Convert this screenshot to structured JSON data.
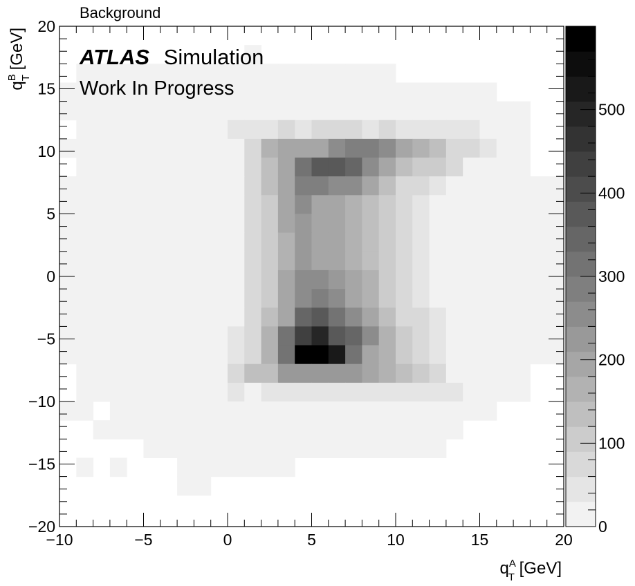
{
  "chart_data": {
    "type": "heatmap",
    "title": "Background",
    "experiment": "ATLAS",
    "label_line1": "Simulation",
    "label_line2": "Work In Progress",
    "xlabel": {
      "base": "q",
      "sup": "A",
      "sub": "T",
      "unit": " [GeV]"
    },
    "ylabel": {
      "base": "q",
      "sup": "B",
      "sub": "T",
      "unit": " [GeV]"
    },
    "xlim": [
      -10,
      20
    ],
    "ylim": [
      -20,
      20
    ],
    "x_bin_width": 1,
    "y_bin_width": 1.5,
    "x_ticks": [
      -10,
      -5,
      0,
      5,
      10,
      15,
      20
    ],
    "y_ticks": [
      -20,
      -15,
      -10,
      -5,
      0,
      5,
      10,
      15,
      20
    ],
    "x_tick_labels": [
      "−10",
      "−5",
      "0",
      "5",
      "10",
      "15",
      "20"
    ],
    "y_tick_labels": [
      "−20",
      "−15",
      "−10",
      "−5",
      "0",
      "5",
      "10",
      "15",
      "20"
    ],
    "zlim": [
      0,
      600
    ],
    "z_ticks": [
      0,
      100,
      200,
      300,
      400,
      500
    ],
    "z_tick_labels": [
      "0",
      "100",
      "200",
      "300",
      "400",
      "500"
    ],
    "colormap": "greys",
    "grid": false,
    "legend": "colorbar-right",
    "rows_top_to_bottom_values_in_counts": [
      [
        0,
        0,
        0,
        0,
        0,
        0,
        0,
        0,
        0,
        0,
        0,
        0,
        0,
        0,
        0,
        0,
        0,
        0,
        0,
        0,
        0,
        0,
        0,
        0,
        0,
        0,
        0,
        0,
        0,
        0
      ],
      [
        0,
        0,
        0,
        0,
        0,
        0,
        0,
        0,
        0,
        0,
        0,
        10,
        0,
        0,
        0,
        0,
        0,
        0,
        0,
        0,
        0,
        0,
        0,
        0,
        0,
        0,
        0,
        0,
        0,
        0
      ],
      [
        0,
        10,
        10,
        10,
        10,
        10,
        10,
        10,
        10,
        10,
        10,
        10,
        10,
        10,
        10,
        10,
        10,
        10,
        10,
        10,
        0,
        0,
        0,
        0,
        0,
        0,
        0,
        0,
        0,
        0
      ],
      [
        10,
        10,
        10,
        10,
        10,
        10,
        10,
        10,
        10,
        10,
        10,
        10,
        10,
        10,
        10,
        10,
        10,
        10,
        10,
        10,
        10,
        10,
        10,
        10,
        10,
        10,
        0,
        0,
        0,
        0
      ],
      [
        10,
        10,
        10,
        10,
        10,
        10,
        10,
        10,
        10,
        10,
        10,
        10,
        10,
        10,
        10,
        10,
        10,
        10,
        10,
        10,
        10,
        10,
        10,
        10,
        10,
        10,
        10,
        10,
        0,
        0
      ],
      [
        0,
        10,
        10,
        10,
        10,
        10,
        10,
        10,
        20,
        20,
        35,
        35,
        35,
        60,
        35,
        60,
        60,
        60,
        35,
        60,
        35,
        35,
        35,
        35,
        35,
        20,
        10,
        10,
        0,
        0
      ],
      [
        10,
        10,
        10,
        10,
        10,
        10,
        10,
        10,
        10,
        10,
        10,
        60,
        150,
        180,
        180,
        200,
        250,
        290,
        280,
        240,
        200,
        160,
        120,
        60,
        60,
        35,
        10,
        10,
        0,
        0
      ],
      [
        0,
        10,
        10,
        10,
        10,
        10,
        10,
        10,
        10,
        10,
        20,
        60,
        120,
        180,
        320,
        380,
        380,
        340,
        250,
        180,
        120,
        100,
        100,
        60,
        10,
        10,
        10,
        10,
        0,
        0
      ],
      [
        10,
        10,
        10,
        10,
        10,
        10,
        10,
        10,
        10,
        10,
        20,
        60,
        120,
        180,
        290,
        280,
        260,
        240,
        200,
        120,
        60,
        60,
        35,
        10,
        10,
        10,
        10,
        10,
        10,
        10
      ],
      [
        10,
        10,
        10,
        10,
        10,
        10,
        10,
        10,
        10,
        10,
        20,
        60,
        100,
        180,
        240,
        200,
        200,
        160,
        140,
        100,
        60,
        35,
        20,
        20,
        10,
        10,
        10,
        10,
        10,
        10
      ],
      [
        10,
        10,
        10,
        10,
        10,
        10,
        10,
        10,
        10,
        10,
        20,
        60,
        100,
        180,
        220,
        200,
        180,
        160,
        140,
        100,
        60,
        35,
        20,
        10,
        10,
        10,
        10,
        10,
        10,
        10
      ],
      [
        10,
        10,
        10,
        10,
        10,
        10,
        10,
        10,
        10,
        10,
        20,
        60,
        100,
        160,
        220,
        200,
        180,
        160,
        140,
        100,
        60,
        35,
        20,
        10,
        10,
        10,
        10,
        10,
        10,
        10
      ],
      [
        10,
        10,
        10,
        10,
        10,
        10,
        10,
        10,
        10,
        10,
        20,
        60,
        100,
        160,
        220,
        200,
        180,
        160,
        140,
        100,
        60,
        35,
        20,
        10,
        10,
        10,
        10,
        10,
        10,
        10
      ],
      [
        10,
        10,
        10,
        10,
        10,
        10,
        10,
        10,
        10,
        10,
        20,
        60,
        100,
        180,
        250,
        240,
        220,
        180,
        160,
        100,
        60,
        35,
        20,
        10,
        10,
        10,
        10,
        10,
        10,
        10
      ],
      [
        10,
        10,
        10,
        10,
        10,
        10,
        10,
        10,
        10,
        10,
        20,
        60,
        100,
        180,
        260,
        280,
        240,
        200,
        160,
        100,
        60,
        35,
        20,
        10,
        10,
        10,
        10,
        10,
        10,
        10
      ],
      [
        10,
        10,
        10,
        10,
        10,
        10,
        10,
        10,
        10,
        10,
        20,
        60,
        120,
        200,
        330,
        380,
        300,
        240,
        200,
        140,
        80,
        60,
        35,
        10,
        10,
        10,
        10,
        10,
        10,
        10
      ],
      [
        10,
        10,
        10,
        10,
        10,
        10,
        10,
        10,
        10,
        10,
        35,
        60,
        160,
        300,
        420,
        500,
        380,
        340,
        240,
        160,
        100,
        60,
        35,
        10,
        10,
        10,
        10,
        10,
        10,
        10
      ],
      [
        10,
        10,
        10,
        10,
        10,
        10,
        10,
        10,
        20,
        20,
        35,
        80,
        160,
        300,
        570,
        590,
        520,
        300,
        200,
        160,
        100,
        60,
        35,
        20,
        20,
        10,
        10,
        10,
        10,
        10
      ],
      [
        0,
        10,
        10,
        10,
        10,
        10,
        10,
        10,
        10,
        20,
        60,
        120,
        140,
        220,
        230,
        230,
        230,
        220,
        180,
        160,
        140,
        100,
        60,
        10,
        20,
        10,
        10,
        10,
        0,
        0
      ],
      [
        0,
        10,
        10,
        10,
        10,
        10,
        10,
        20,
        20,
        20,
        35,
        20,
        35,
        35,
        35,
        35,
        35,
        35,
        35,
        35,
        35,
        35,
        35,
        35,
        20,
        10,
        10,
        10,
        0,
        0
      ],
      [
        10,
        10,
        0,
        10,
        10,
        10,
        10,
        10,
        10,
        10,
        10,
        20,
        10,
        20,
        10,
        20,
        10,
        10,
        20,
        20,
        10,
        10,
        10,
        10,
        10,
        10,
        0,
        0,
        0,
        0
      ],
      [
        0,
        0,
        10,
        10,
        10,
        10,
        10,
        10,
        10,
        10,
        10,
        10,
        10,
        10,
        10,
        10,
        10,
        10,
        10,
        10,
        10,
        10,
        10,
        10,
        0,
        0,
        0,
        0,
        0,
        0
      ],
      [
        0,
        0,
        0,
        0,
        0,
        10,
        10,
        10,
        10,
        10,
        10,
        10,
        10,
        10,
        10,
        10,
        10,
        10,
        10,
        10,
        10,
        10,
        10,
        0,
        0,
        0,
        0,
        0,
        0,
        0
      ],
      [
        0,
        10,
        0,
        10,
        0,
        0,
        0,
        10,
        10,
        10,
        10,
        10,
        10,
        10,
        0,
        0,
        0,
        0,
        0,
        0,
        0,
        0,
        0,
        0,
        0,
        0,
        0,
        0,
        0,
        0
      ],
      [
        0,
        0,
        0,
        0,
        0,
        0,
        0,
        10,
        10,
        0,
        0,
        0,
        0,
        0,
        0,
        0,
        0,
        0,
        0,
        0,
        0,
        0,
        0,
        0,
        0,
        0,
        0,
        0,
        0,
        0
      ],
      [
        0,
        0,
        0,
        0,
        0,
        0,
        0,
        0,
        0,
        0,
        0,
        0,
        0,
        0,
        0,
        0,
        0,
        0,
        0,
        0,
        0,
        0,
        0,
        0,
        0,
        0,
        0,
        0,
        0,
        0
      ],
      [
        0,
        0,
        0,
        0,
        0,
        0,
        0,
        0,
        0,
        0,
        0,
        0,
        0,
        0,
        0,
        0,
        0,
        0,
        0,
        0,
        0,
        0,
        0,
        0,
        0,
        0,
        0,
        0,
        0,
        0
      ]
    ]
  }
}
